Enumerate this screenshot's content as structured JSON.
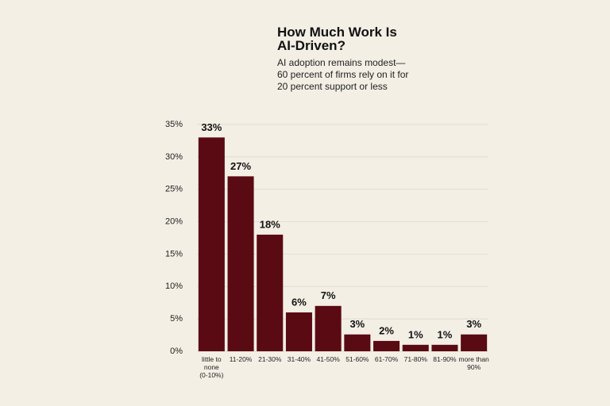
{
  "chart_data": {
    "type": "bar",
    "title": "How Much Work Is AI-Driven?",
    "subtitle": "AI adoption remains modest— 60 percent of firms rely on it for 20 percent support or less",
    "categories": [
      "little to none (0-10%)",
      "11-20%",
      "21-30%",
      "31-40%",
      "41-50%",
      "51-60%",
      "61-70%",
      "71-80%",
      "81-90%",
      "more than 90%"
    ],
    "values": [
      33,
      27,
      18,
      6,
      7,
      2.6,
      1.6,
      1,
      1,
      2.6
    ],
    "value_labels": [
      "33%",
      "27%",
      "18%",
      "6%",
      "7%",
      "3%",
      "2%",
      "1%",
      "1%",
      "3%"
    ],
    "color": "#5a0a13",
    "ylim": [
      0,
      35
    ],
    "yticks": [
      {
        "value": 0,
        "label": "0%"
      },
      {
        "value": 5,
        "label": "5%"
      },
      {
        "value": 10,
        "label": "10%"
      },
      {
        "value": 15,
        "label": "15%"
      },
      {
        "value": 20,
        "label": "20%"
      },
      {
        "value": 25,
        "label": "25%"
      },
      {
        "value": 30,
        "label": "30%"
      },
      {
        "value": 35,
        "label": "35%"
      }
    ],
    "grid": true
  }
}
